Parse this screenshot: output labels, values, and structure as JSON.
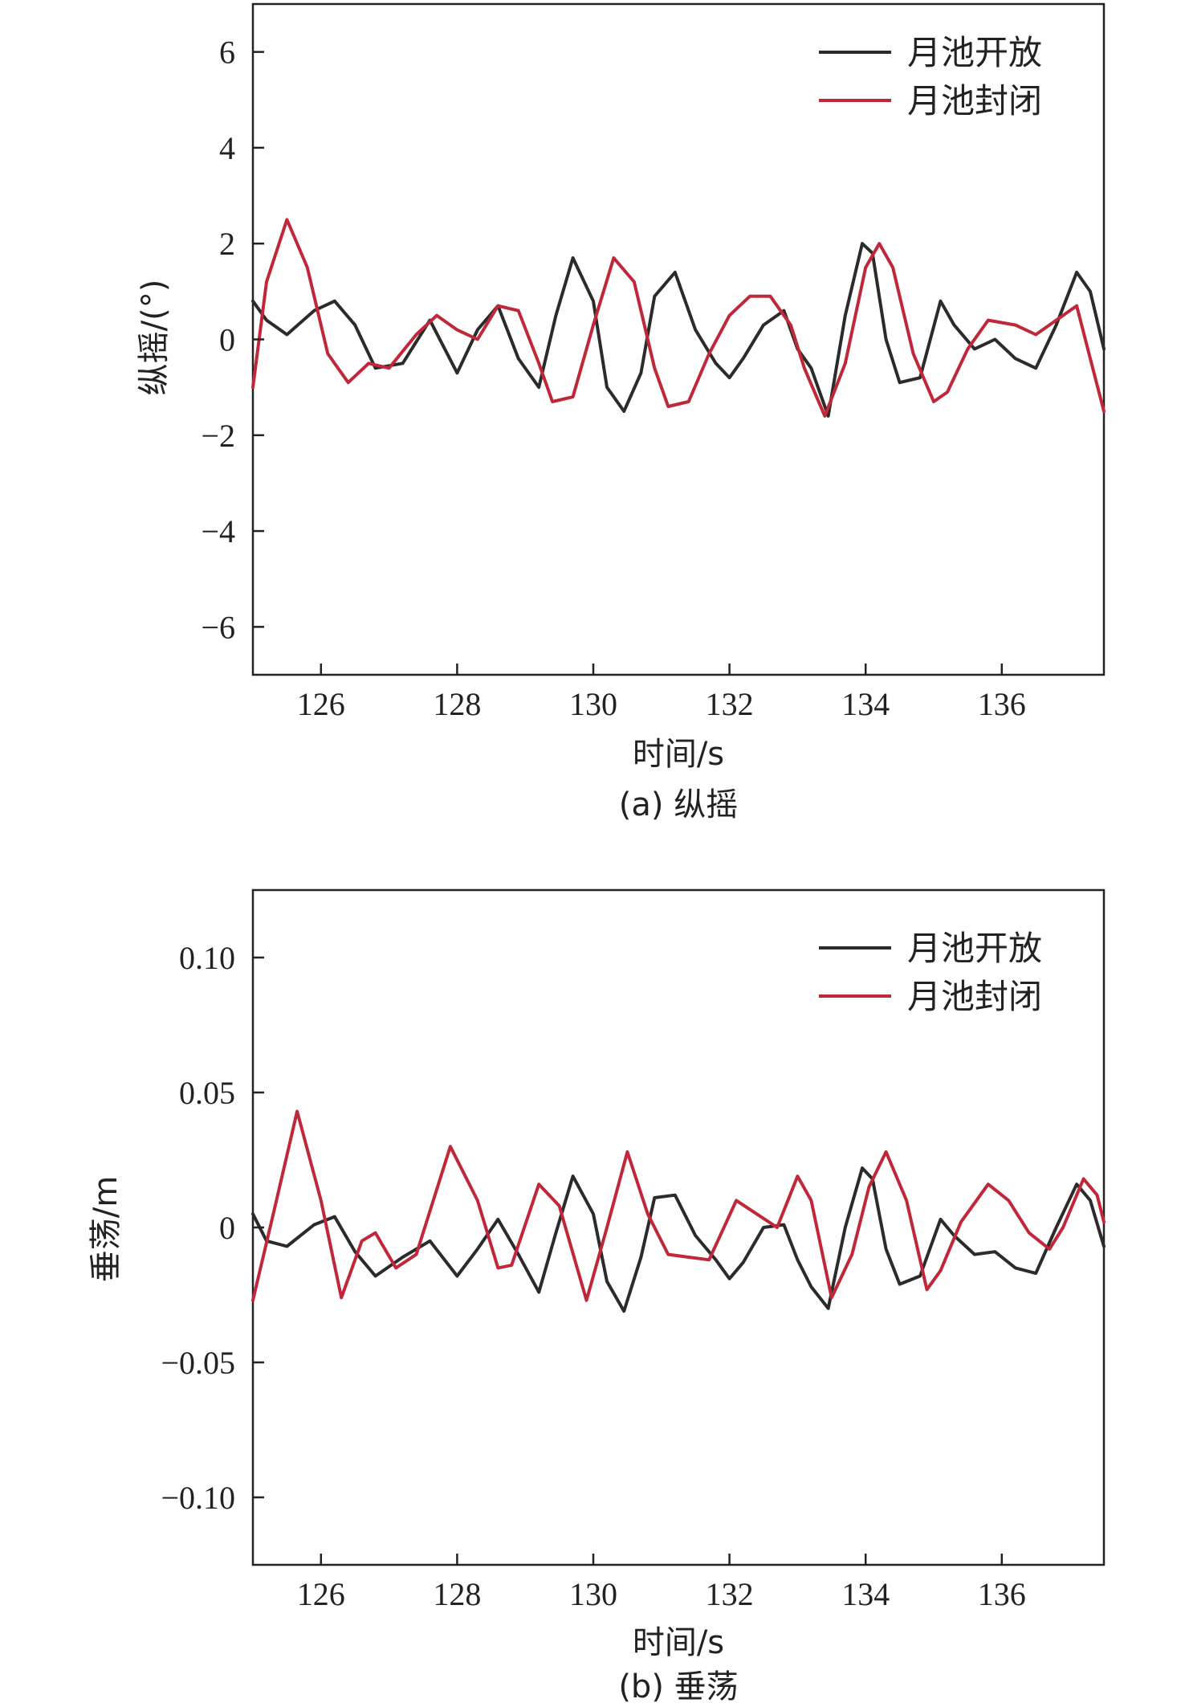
{
  "chart_data": [
    {
      "type": "line",
      "caption": "(a) 纵摇",
      "xlabel": "时间/s",
      "ylabel": "纵摇/(°)",
      "xlim": [
        125,
        137.5
      ],
      "ylim": [
        -7,
        7
      ],
      "xticks": [
        126,
        128,
        130,
        132,
        134,
        136
      ],
      "yticks": [
        6,
        4,
        2,
        0,
        -2,
        -4,
        -6
      ],
      "ytick_labels": [
        "6",
        "4",
        "2",
        "0",
        "−2",
        "−4",
        "−6"
      ],
      "legend_position": "top-right",
      "series": [
        {
          "name": "月池开放",
          "color": "#2b2b2b",
          "x": [
            125.0,
            125.2,
            125.5,
            125.9,
            126.2,
            126.5,
            126.8,
            127.2,
            127.6,
            128.0,
            128.3,
            128.6,
            128.9,
            129.2,
            129.45,
            129.7,
            130.0,
            130.2,
            130.45,
            130.7,
            130.9,
            131.2,
            131.5,
            131.8,
            132.0,
            132.2,
            132.5,
            132.8,
            133.0,
            133.2,
            133.45,
            133.7,
            133.95,
            134.1,
            134.3,
            134.5,
            134.8,
            135.1,
            135.3,
            135.6,
            135.9,
            136.2,
            136.5,
            136.8,
            137.1,
            137.3,
            137.5
          ],
          "y": [
            0.8,
            0.4,
            0.1,
            0.6,
            0.8,
            0.3,
            -0.6,
            -0.5,
            0.4,
            -0.7,
            0.2,
            0.7,
            -0.4,
            -1.0,
            0.5,
            1.7,
            0.8,
            -1.0,
            -1.5,
            -0.7,
            0.9,
            1.4,
            0.2,
            -0.5,
            -0.8,
            -0.4,
            0.3,
            0.6,
            -0.2,
            -0.6,
            -1.6,
            0.5,
            2.0,
            1.8,
            0.0,
            -0.9,
            -0.8,
            0.8,
            0.3,
            -0.2,
            0.0,
            -0.4,
            -0.6,
            0.3,
            1.4,
            1.0,
            -0.2
          ]
        },
        {
          "name": "月池封闭",
          "color": "#c0283a",
          "x": [
            125.0,
            125.2,
            125.5,
            125.8,
            126.1,
            126.4,
            126.7,
            127.0,
            127.4,
            127.7,
            128.0,
            128.3,
            128.6,
            128.9,
            129.2,
            129.4,
            129.7,
            130.0,
            130.3,
            130.6,
            130.9,
            131.1,
            131.4,
            131.7,
            132.0,
            132.3,
            132.6,
            132.9,
            133.1,
            133.4,
            133.7,
            134.0,
            134.2,
            134.4,
            134.7,
            135.0,
            135.2,
            135.5,
            135.8,
            136.2,
            136.5,
            136.8,
            137.1,
            137.3,
            137.5
          ],
          "y": [
            -1.0,
            1.2,
            2.5,
            1.5,
            -0.3,
            -0.9,
            -0.5,
            -0.6,
            0.1,
            0.5,
            0.2,
            0.0,
            0.7,
            0.6,
            -0.5,
            -1.3,
            -1.2,
            0.3,
            1.7,
            1.2,
            -0.6,
            -1.4,
            -1.3,
            -0.3,
            0.5,
            0.9,
            0.9,
            0.3,
            -0.6,
            -1.6,
            -0.5,
            1.5,
            2.0,
            1.5,
            -0.3,
            -1.3,
            -1.1,
            -0.2,
            0.4,
            0.3,
            0.1,
            0.4,
            0.7,
            -0.4,
            -1.5
          ]
        }
      ]
    },
    {
      "type": "line",
      "caption": "(b) 垂荡",
      "xlabel": "时间/s",
      "ylabel": "垂荡/m",
      "xlim": [
        125,
        137.5
      ],
      "ylim": [
        -0.125,
        0.125
      ],
      "xticks": [
        126,
        128,
        130,
        132,
        134,
        136
      ],
      "yticks": [
        0.1,
        0.05,
        0,
        -0.05,
        -0.1
      ],
      "ytick_labels": [
        "0.10",
        "0.05",
        "0",
        "−0.05",
        "−0.10"
      ],
      "legend_position": "top-right",
      "series": [
        {
          "name": "月池开放",
          "color": "#2b2b2b",
          "x": [
            125.0,
            125.2,
            125.5,
            125.9,
            126.2,
            126.5,
            126.8,
            127.2,
            127.6,
            128.0,
            128.3,
            128.6,
            128.9,
            129.2,
            129.45,
            129.7,
            130.0,
            130.2,
            130.45,
            130.7,
            130.9,
            131.2,
            131.5,
            131.8,
            132.0,
            132.2,
            132.5,
            132.8,
            133.0,
            133.2,
            133.45,
            133.7,
            133.95,
            134.1,
            134.3,
            134.5,
            134.8,
            135.1,
            135.3,
            135.6,
            135.9,
            136.2,
            136.5,
            136.8,
            137.1,
            137.3,
            137.5
          ],
          "y": [
            0.005,
            -0.005,
            -0.007,
            0.001,
            0.004,
            -0.009,
            -0.018,
            -0.011,
            -0.005,
            -0.018,
            -0.008,
            0.003,
            -0.01,
            -0.024,
            -0.002,
            0.019,
            0.005,
            -0.02,
            -0.031,
            -0.011,
            0.011,
            0.012,
            -0.003,
            -0.012,
            -0.019,
            -0.013,
            0.0,
            0.001,
            -0.012,
            -0.022,
            -0.03,
            0.0,
            0.022,
            0.018,
            -0.008,
            -0.021,
            -0.018,
            0.003,
            -0.003,
            -0.01,
            -0.009,
            -0.015,
            -0.017,
            0.0,
            0.016,
            0.01,
            -0.007
          ]
        },
        {
          "name": "月池封闭",
          "color": "#c0283a",
          "x": [
            125.0,
            125.3,
            125.65,
            126.0,
            126.3,
            126.6,
            126.8,
            127.1,
            127.4,
            127.9,
            128.3,
            128.6,
            128.8,
            129.2,
            129.5,
            129.9,
            130.2,
            130.5,
            130.8,
            131.1,
            131.4,
            131.7,
            132.1,
            132.4,
            132.7,
            133.0,
            133.2,
            133.5,
            133.8,
            134.05,
            134.3,
            134.6,
            134.9,
            135.1,
            135.4,
            135.8,
            136.1,
            136.4,
            136.7,
            136.9,
            137.2,
            137.4,
            137.5
          ],
          "y": [
            -0.027,
            0.005,
            0.043,
            0.01,
            -0.026,
            -0.005,
            -0.002,
            -0.015,
            -0.01,
            0.03,
            0.01,
            -0.015,
            -0.014,
            0.016,
            0.008,
            -0.027,
            0.0,
            0.028,
            0.005,
            -0.01,
            -0.011,
            -0.012,
            0.01,
            0.005,
            0.0,
            0.019,
            0.01,
            -0.026,
            -0.01,
            0.015,
            0.028,
            0.01,
            -0.023,
            -0.016,
            0.002,
            0.016,
            0.01,
            -0.002,
            -0.008,
            0.0,
            0.018,
            0.012,
            0.002
          ]
        }
      ]
    }
  ]
}
